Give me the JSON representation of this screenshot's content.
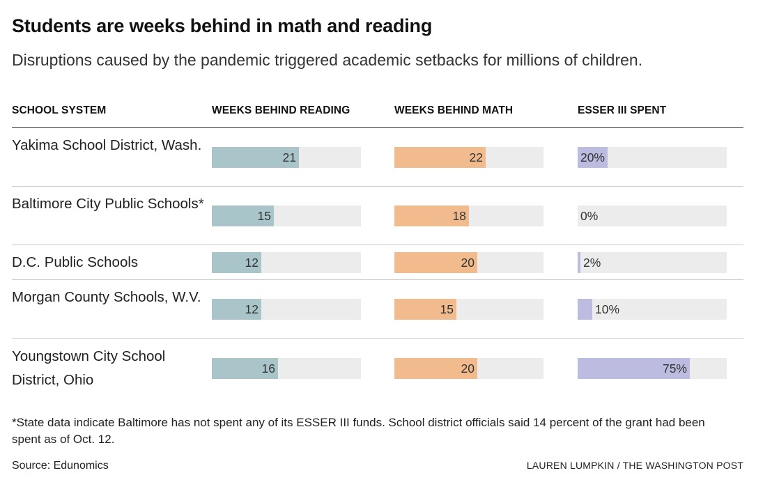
{
  "title": "Students are weeks behind in math and reading",
  "subtitle": "Disruptions caused by the pandemic triggered academic setbacks for millions of children.",
  "headers": {
    "system": "SCHOOL SYSTEM",
    "reading": "WEEKS BEHIND READING",
    "math": "WEEKS BEHIND MATH",
    "esser": "ESSER III SPENT"
  },
  "footnote": "*State data indicate Baltimore has not spent any of its ESSER III funds. School district officials said 14 percent of the grant had been spent as of Oct. 12.",
  "source": "Source: Edunomics",
  "credit": "LAUREN LUMPKIN / THE WASHINGTON POST",
  "colors": {
    "reading": "#a9c5c9",
    "math": "#f2bb8d",
    "esser": "#bcbce0",
    "track": "#ececec"
  },
  "chart_data": {
    "type": "table",
    "scales": {
      "reading_max": 36,
      "math_max": 36,
      "esser_max": 100
    },
    "rows": [
      {
        "name": "Yakima School District, Wash.",
        "reading": 21,
        "reading_label": "21",
        "math": 22,
        "math_label": "22",
        "esser": 20,
        "esser_label": "20%"
      },
      {
        "name": "Baltimore City Public Schools*",
        "reading": 15,
        "reading_label": "15",
        "math": 18,
        "math_label": "18",
        "esser": 0,
        "esser_label": "0%"
      },
      {
        "name": "D.C. Public Schools",
        "reading": 12,
        "reading_label": "12",
        "math": 20,
        "math_label": "20",
        "esser": 2,
        "esser_label": "2%"
      },
      {
        "name": "Morgan County Schools, W.V.",
        "reading": 12,
        "reading_label": "12",
        "math": 15,
        "math_label": "15",
        "esser": 10,
        "esser_label": "10%"
      },
      {
        "name": "Youngstown City School District, Ohio",
        "reading": 16,
        "reading_label": "16",
        "math": 20,
        "math_label": "20",
        "esser": 75,
        "esser_label": "75%"
      }
    ]
  }
}
